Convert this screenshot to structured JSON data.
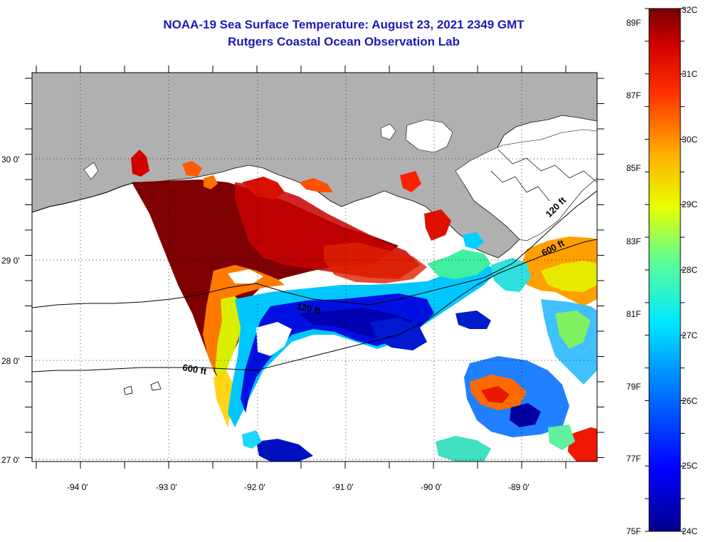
{
  "header": {
    "title": "NOAA-19 Sea Surface Temperature:  August 23, 2021 2349 GMT",
    "subtitle": "Rutgers Coastal Ocean Observation Lab"
  },
  "map": {
    "lon_labels": [
      "-94 0'",
      "-93 0'",
      "-92 0'",
      "-91 0'",
      "-90 0'",
      "-89 0'"
    ],
    "lat_labels": [
      "30 0'",
      "29 0'",
      "28 0'",
      "27 0'"
    ],
    "contour_labels": [
      "120 ft",
      "600 ft",
      "120 ft",
      "600 ft"
    ],
    "colors": {
      "land": "#b0b0b0",
      "ocean_nodata": "#ffffff"
    }
  },
  "colorbar": {
    "fahrenheit_labels": [
      "89F",
      "87F",
      "85F",
      "83F",
      "81F",
      "79F",
      "77F",
      "75F"
    ],
    "celsius_labels": [
      "32C",
      "31C",
      "30C",
      "29C",
      "28C",
      "27C",
      "26C",
      "25C",
      "24C"
    ],
    "range_c": [
      24,
      32
    ],
    "palette": "jet"
  }
}
